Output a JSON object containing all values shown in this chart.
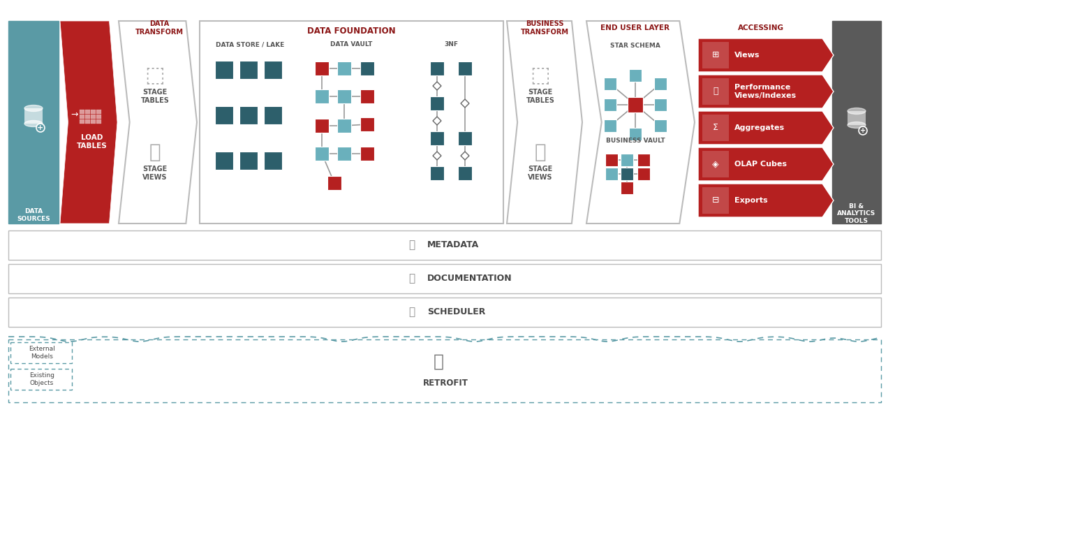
{
  "colors": {
    "teal_bg": "#5a9aa5",
    "teal_node": "#6ab0bc",
    "teal_dark_node": "#2d5f6b",
    "red": "#b52020",
    "dark_gray": "#5a5a5a",
    "white": "#ffffff",
    "light_gray": "#f7f7f7",
    "border_gray": "#bbbbbb",
    "text_red": "#8b1515",
    "text_dark": "#333333",
    "text_gray": "#666666",
    "teal_dashed": "#5a9aa5"
  },
  "accessing_items": [
    "Views",
    "Performance\nViews/Indexes",
    "Aggregates",
    "OLAP Cubes",
    "Exports"
  ],
  "bottom_bars": [
    "METADATA",
    "DOCUMENTATION",
    "SCHEDULER"
  ]
}
